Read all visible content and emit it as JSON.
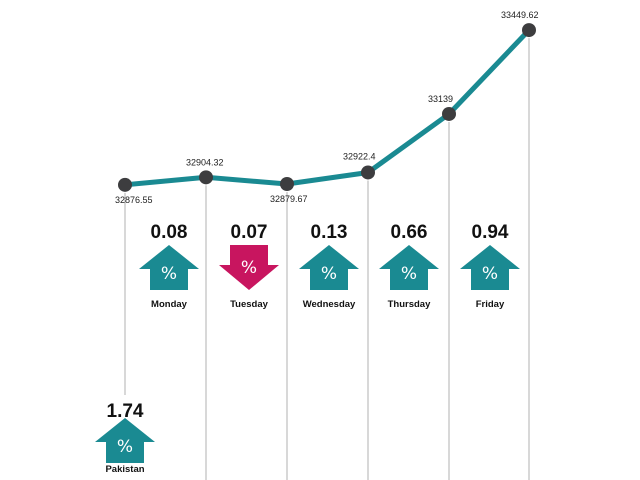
{
  "chart_data": {
    "type": "line",
    "series": [
      {
        "values": [
          32876.55,
          32904.32,
          32879.67,
          32922.4,
          33139,
          33449.62
        ]
      }
    ],
    "point_labels": [
      "32876.55",
      "32904.32",
      "32879.67",
      "32922.4",
      "33139",
      "33449.62"
    ],
    "changes": [
      {
        "label": "Pakistan",
        "value": "1.74",
        "direction": "up"
      },
      {
        "label": "Monday",
        "value": "0.08",
        "direction": "up"
      },
      {
        "label": "Tuesday",
        "value": "0.07",
        "direction": "down"
      },
      {
        "label": "Wednesday",
        "value": "0.13",
        "direction": "up"
      },
      {
        "label": "Thursday",
        "value": "0.66",
        "direction": "up"
      },
      {
        "label": "Friday",
        "value": "0.94",
        "direction": "up"
      }
    ],
    "percent_symbol": "%",
    "colors": {
      "line": "#1a8a92",
      "marker": "#3d3d3f",
      "up": "#1a8a92",
      "down": "#c8155f",
      "guide": "#c4c4c4"
    }
  }
}
